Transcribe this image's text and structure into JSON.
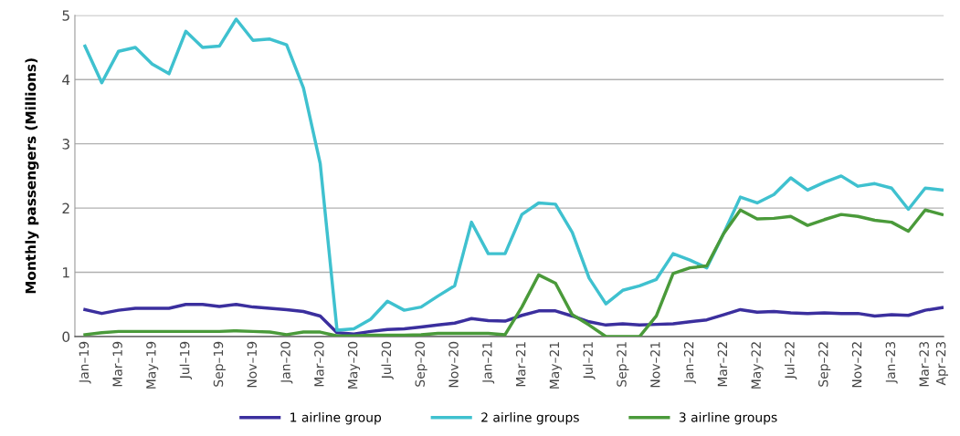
{
  "chart_data": {
    "type": "line",
    "ylabel": "Monthly passengers (Millions)",
    "categories": [
      "Jan–19",
      null,
      "Mar–19",
      null,
      "May–19",
      null,
      "Jul–19",
      null,
      "Sep–19",
      null,
      "Nov–19",
      null,
      "Jan–20",
      null,
      "Mar–20",
      null,
      "May–20",
      null,
      "Jul–20",
      null,
      "Sep–20",
      null,
      "Nov–20",
      null,
      "Jan–21",
      null,
      "Mar–21",
      null,
      "May–21",
      null,
      "Jul–21",
      null,
      "Sep–21",
      null,
      "Nov–21",
      null,
      "Jan–22",
      null,
      "Mar–22",
      null,
      "May–22",
      null,
      "Jul–22",
      null,
      "Sep–22",
      null,
      "Nov–22",
      null,
      "Jan–23",
      null,
      "Mar–23",
      "Apr–23"
    ],
    "series": [
      {
        "name": "1 airline group",
        "color": "#3b2f9e",
        "values": [
          0.42,
          0.36,
          0.41,
          0.44,
          0.44,
          0.44,
          0.5,
          0.5,
          0.47,
          0.5,
          0.46,
          0.44,
          0.42,
          0.39,
          0.32,
          0.06,
          0.04,
          0.08,
          0.11,
          0.12,
          0.15,
          0.18,
          0.21,
          0.28,
          0.25,
          0.24,
          0.33,
          0.4,
          0.4,
          0.32,
          0.23,
          0.18,
          0.2,
          0.18,
          0.19,
          0.2,
          0.23,
          0.26,
          0.34,
          0.42,
          0.38,
          0.39,
          0.37,
          0.36,
          0.37,
          0.36,
          0.36,
          0.32,
          0.34,
          0.33,
          0.41,
          0.45
        ]
      },
      {
        "name": "2 airline groups",
        "color": "#3fc1cf",
        "values": [
          4.52,
          3.95,
          4.44,
          4.5,
          4.24,
          4.09,
          4.75,
          4.5,
          4.52,
          4.94,
          4.61,
          4.63,
          4.54,
          3.87,
          2.69,
          0.1,
          0.12,
          0.27,
          0.55,
          0.41,
          0.46,
          0.63,
          0.79,
          1.78,
          1.29,
          1.29,
          1.9,
          2.08,
          2.06,
          1.62,
          0.91,
          0.51,
          0.72,
          0.79,
          0.89,
          1.29,
          1.19,
          1.07,
          1.6,
          2.17,
          2.08,
          2.21,
          2.47,
          2.28,
          2.4,
          2.5,
          2.34,
          2.38,
          2.31,
          1.98,
          2.31,
          2.28
        ]
      },
      {
        "name": "3 airline groups",
        "color": "#4a9a3a",
        "values": [
          0.03,
          0.06,
          0.08,
          0.08,
          0.08,
          0.08,
          0.08,
          0.08,
          0.08,
          0.09,
          0.08,
          0.07,
          0.03,
          0.07,
          0.07,
          0.01,
          0.01,
          0.02,
          0.02,
          0.02,
          0.03,
          0.05,
          0.05,
          0.05,
          0.05,
          0.03,
          0.46,
          0.96,
          0.83,
          0.34,
          0.18,
          0.0,
          0.0,
          0.0,
          0.32,
          0.98,
          1.07,
          1.1,
          1.6,
          1.97,
          1.83,
          1.84,
          1.87,
          1.73,
          1.82,
          1.9,
          1.87,
          1.81,
          1.78,
          1.64,
          1.97,
          1.9
        ]
      }
    ],
    "ylim": [
      0,
      5
    ],
    "yticks": [
      0,
      1,
      2,
      3,
      4,
      5
    ],
    "grid": "y",
    "legend": "bottom",
    "marker": "none",
    "line_style": "solid"
  }
}
